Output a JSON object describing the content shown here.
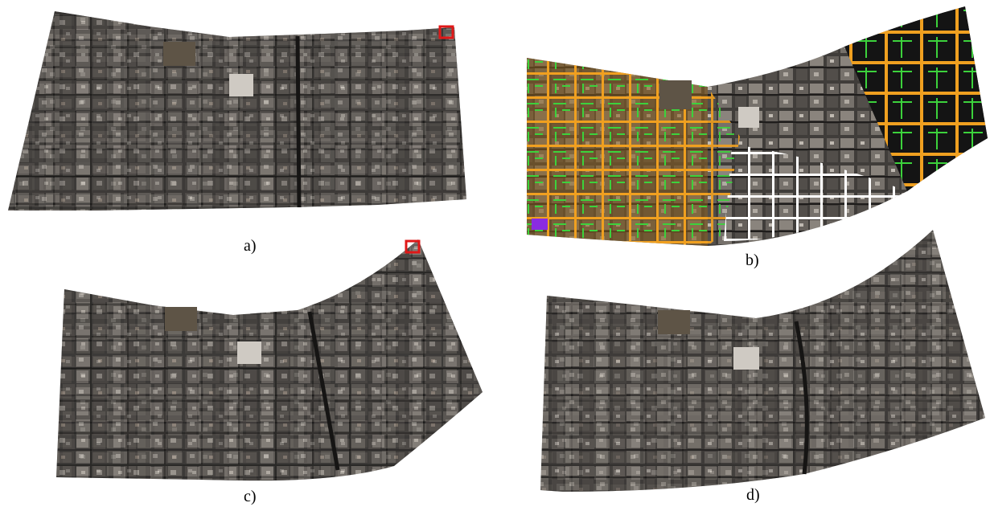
{
  "captions": {
    "a": "a)",
    "b": "b)",
    "c": "c)",
    "d": "d)"
  },
  "colors": {
    "city_base": "#3a3836",
    "city_light": "#8f8a84",
    "city_dark": "#1e1c1b",
    "street_overlay": "#f0a020",
    "building_overlay": "#3cd23c",
    "unmapped_blocks": "#ffffff",
    "black_region": "#141414",
    "marker_red": "#e01818",
    "marker_purple": "#8a2be2"
  }
}
